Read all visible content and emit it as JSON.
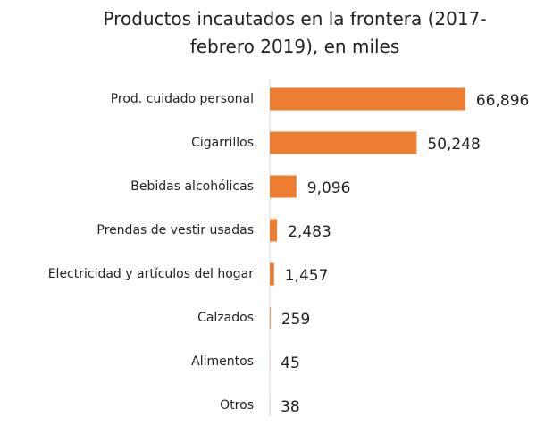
{
  "chart_data": {
    "type": "bar",
    "orientation": "horizontal",
    "title": "Productos incautados en la frontera (2017-febrero 2019), en miles",
    "categories": [
      "Prod. cuidado personal",
      "Cigarrillos",
      "Bebidas alcohólicas",
      "Prendas de vestir usadas",
      "Electricidad y artículos del hogar",
      "Calzados",
      "Alimentos",
      "Otros"
    ],
    "values": [
      66896,
      50248,
      9096,
      2483,
      1457,
      259,
      45,
      38
    ],
    "value_labels": [
      "66,896",
      "50,248",
      "9,096",
      "2,483",
      "1,457",
      "259",
      "45",
      "38"
    ],
    "color": "#ed7d31",
    "xlim": [
      0,
      70000
    ]
  }
}
